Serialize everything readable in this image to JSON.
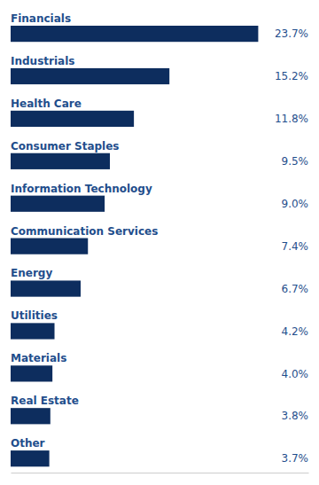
{
  "chart_data": {
    "type": "bar",
    "orientation": "horizontal",
    "categories": [
      "Financials",
      "Industrials",
      "Health Care",
      "Consumer Staples",
      "Information Technology",
      "Communication Services",
      "Energy",
      "Utilities",
      "Materials",
      "Real Estate",
      "Other"
    ],
    "values": [
      23.7,
      15.2,
      11.8,
      9.5,
      9.0,
      7.4,
      6.7,
      4.2,
      4.0,
      3.8,
      3.7
    ],
    "value_labels": [
      "23.7%",
      "15.2%",
      "11.8%",
      "9.5%",
      "9.0%",
      "7.4%",
      "6.7%",
      "4.2%",
      "4.0%",
      "3.8%",
      "3.7%"
    ],
    "color": "#0d2d5e",
    "xlim": [
      0,
      28.5
    ],
    "data_labels": true,
    "tick_labels": false,
    "grid": false
  }
}
